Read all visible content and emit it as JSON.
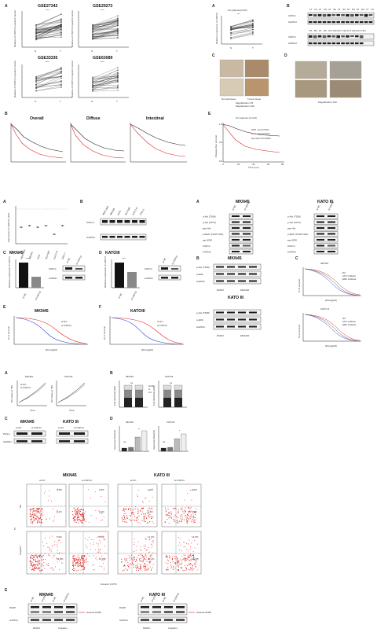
{
  "figure1": {
    "panel_a": {
      "label": "A",
      "datasets": [
        {
          "title": "GSE27342",
          "sig": "****"
        },
        {
          "title": "GSE29272",
          "sig": "****"
        },
        {
          "title": "GSE33335",
          "sig": "****"
        },
        {
          "title": "GSE63089",
          "sig": "****"
        }
      ],
      "ylabel": "Relative of USP14 in gastric cancer",
      "xlabels": [
        "N",
        "T"
      ]
    },
    "panel_a2": {
      "label": "A",
      "title": "GC patients(n=23)",
      "sig": "***",
      "ylabel": "Relative expression of USP14",
      "xlabels": [
        "N",
        "T"
      ]
    },
    "panel_b": {
      "label": "B",
      "samples_row1": [
        "1T",
        "1N",
        "2T",
        "2N",
        "3T",
        "3N",
        "4T",
        "4N",
        "5T",
        "5N",
        "6T",
        "6N",
        "7T",
        "7N"
      ],
      "samples_row2": [
        "8T",
        "8N",
        "9T",
        "9N",
        "10T",
        "10N",
        "11T",
        "11N",
        "12T",
        "12N",
        "13T",
        "13N"
      ],
      "proteins": [
        "USP14",
        "GAPDH"
      ]
    },
    "panel_c": {
      "label": "C",
      "captions": [
        "Normal tissue",
        "Tumor tissue"
      ],
      "mag1": "Magnification X5",
      "mag2": "Magnification X20"
    },
    "panel_d": {
      "label": "D",
      "mag": "Magnification X40"
    },
    "panel_km": {
      "label": "B",
      "titles": [
        "Overall",
        "Diffuse",
        "Intestinal"
      ]
    },
    "panel_e": {
      "label": "E",
      "title": "GC patients (n=113)",
      "legend": [
        "low (N=51)",
        "high (N=62)"
      ],
      "pvalue": "log-rank P=0.0002",
      "ylabel": "Disease-free survival",
      "xlabel": "Time (mo)",
      "yticks": [
        "1.0",
        "0.5",
        "0.0"
      ],
      "xticks": [
        "0",
        "20",
        "40",
        "60",
        "80"
      ]
    }
  },
  "figure2": {
    "panel_a": {
      "label": "A",
      "ylabel": "Expression of USP14 (-ΔCt)",
      "cells": [
        "MGC-803",
        "MKN45",
        "AGS",
        "NCI-N87",
        "KATO III",
        "SNU-1"
      ]
    },
    "panel_b": {
      "label": "B",
      "cells": [
        "MGC-803",
        "MKN45",
        "AGS",
        "NCI-N87",
        "KATO III",
        "SNU-1"
      ],
      "proteins": [
        "USP14",
        "GAPDH"
      ]
    },
    "panel_c": {
      "label": "C",
      "title": "MKN45",
      "ylabel": "Relative expression of USP14",
      "xlabels": [
        "si-NC",
        "si-USP14"
      ],
      "sig": "****",
      "proteins": [
        "USP14",
        "GAPDH"
      ]
    },
    "panel_d": {
      "label": "D",
      "title": "KATOIII",
      "ylabel": "Relative expression of USP14",
      "xlabels": [
        "si-NC",
        "si-USP14"
      ],
      "sig": "****",
      "proteins": [
        "USP14",
        "GAPDH"
      ]
    },
    "panel_e": {
      "label": "E",
      "title": "MKN45",
      "legend": [
        "si-NC",
        "si-USP14"
      ],
      "ylabel": "% of survival",
      "xlabel": "[Doxo](μM)"
    },
    "panel_f": {
      "label": "F",
      "title": "KATOIII",
      "legend": [
        "si-NC",
        "si-USP14"
      ],
      "ylabel": "% of survival",
      "xlabel": "[Doxo](μM)"
    },
    "panel_g": {
      "label": "A",
      "blot1_title": "MKN45",
      "blot2_title": "KATO III",
      "proteins": [
        "p-Akt (T308)",
        "p-Akt (S473)",
        "pan-Akt",
        "p-ERK (T202/Y204)",
        "pan-ERK",
        "USP14",
        "GAPDH"
      ],
      "cols": [
        "si-NC",
        "si-USP14"
      ]
    },
    "panel_h": {
      "label": "B",
      "blot1_title": "MKN45",
      "blot2_title": "KATO III",
      "proteins": [
        "p-Akt (T308)",
        "p-ERK",
        "GAPDH"
      ],
      "groups": [
        "DMSO",
        "MK2206"
      ]
    },
    "panel_i": {
      "label": "C",
      "titles": [
        "MKN45",
        "KATO III"
      ],
      "legend": [
        "NC",
        "AKT inhibitor",
        "ERK inhibitor"
      ],
      "ylabel": "% of survival",
      "xlabel": "[Doxo](μM)"
    }
  },
  "figure3": {
    "panel_a": {
      "label": "A",
      "titles": [
        "MKN45",
        "KATOIII"
      ],
      "ylabel": "OD Value at 450",
      "xlabel": "Time",
      "legend": [
        "si-NC",
        "si-USP14"
      ]
    },
    "panel_b": {
      "label": "B",
      "titles": [
        "MKN45",
        "KATOIII"
      ],
      "ylabel": "Cell distribution(%)",
      "legend": [
        "G2/M",
        "S",
        "G1"
      ],
      "sig": "ns"
    },
    "panel_c": {
      "label": "C",
      "titles": [
        "MKN45",
        "KATO III"
      ],
      "cols": [
        "si-NC",
        "si-USP14",
        "si-NC",
        "si-USP14"
      ],
      "proteins": [
        "PCNA",
        "GAPDH"
      ]
    },
    "panel_d": {
      "label": "D",
      "titles": [
        "MKN45",
        "KATOIII"
      ],
      "ylabel": "Apoptosis Rate(%)",
      "sigs": [
        "ns",
        "**",
        "ns",
        "*"
      ]
    },
    "panel_flow": {
      "titles": [
        "MKN45",
        "KATO III"
      ],
      "cols": [
        "si-NC",
        "si-USP14",
        "si-NC",
        "si-USP14"
      ],
      "rows": [
        "NC",
        "Cisplatin"
      ],
      "ylabel": "PI",
      "xlabel": "Annexin V-FITC",
      "quads": [
        [
          "0.4%",
          "5.1%",
          "2.6%",
          "3.2%",
          "0.4%",
          "4.4%",
          "0.8%",
          "3.9%"
        ],
        [
          "5.9%",
          "13.4%",
          "5.0%",
          "21.8%",
          "11.7%",
          "20.2%",
          "14.5%",
          "19.9%"
        ]
      ]
    },
    "panel_e": {
      "label": "E",
      "titles": [
        "MKN45",
        "KATO III"
      ],
      "cols": [
        "si-NC",
        "si-USP14",
        "si-NC",
        "si-USP14"
      ],
      "proteins": [
        "PARP",
        "GAPDH"
      ],
      "annot": "cleaved PARP",
      "groups": [
        "DMSO",
        "Cisplatin"
      ]
    }
  }
}
